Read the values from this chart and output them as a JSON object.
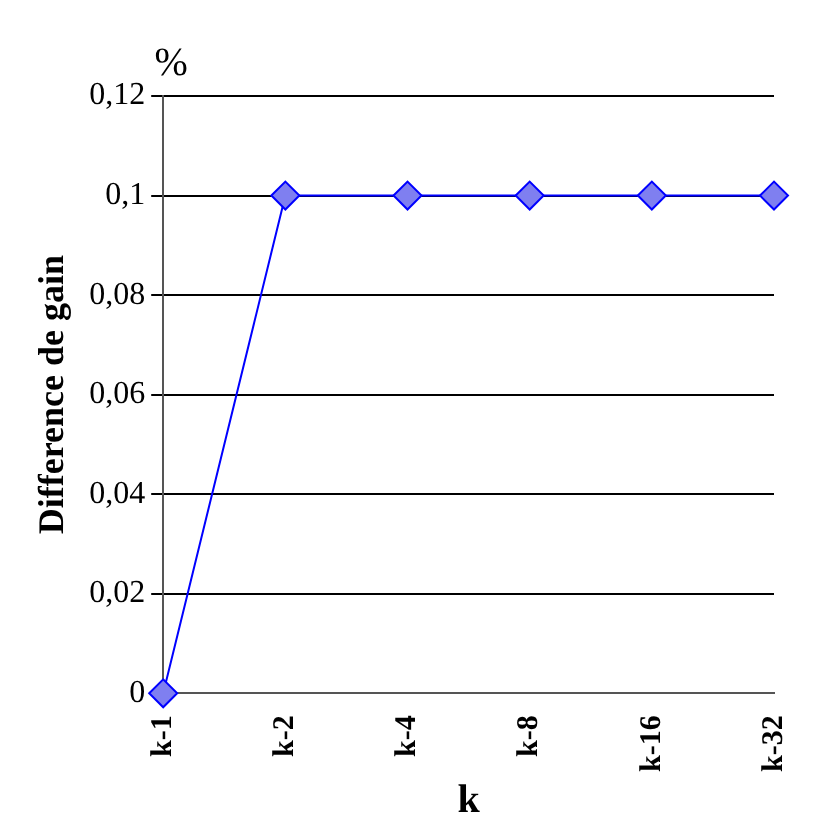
{
  "chart_data": {
    "type": "line",
    "xlabel": "k",
    "ylabel": "Difference de gain",
    "annotations": [
      "%"
    ],
    "categories": [
      "k-1",
      "k-2",
      "k-4",
      "k-8",
      "k-16",
      "k-32"
    ],
    "series": [
      {
        "color": "#0000ff",
        "values": [
          0,
          0.1,
          0.1,
          0.1,
          0.1,
          0.1
        ]
      }
    ],
    "ylim": [
      0,
      0.12
    ],
    "yticks": [
      0,
      {
        "value": 0.02,
        "label": "0,02"
      },
      {
        "value": 0.04,
        "label": "0,04"
      },
      {
        "value": 0.06,
        "label": "0,06"
      },
      {
        "value": 0.08,
        "label": "0,08"
      },
      {
        "value": 0.1,
        "label": "0,1"
      },
      {
        "value": 0.12,
        "label": "0,12"
      }
    ],
    "grid": "y",
    "marker": "diamond",
    "line_style": "solid",
    "legend": false
  }
}
